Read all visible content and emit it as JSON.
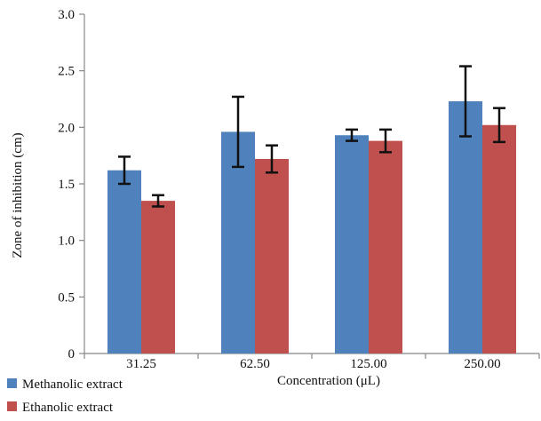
{
  "chart_data": {
    "type": "bar",
    "title": "",
    "xlabel": "Concentration (μL)",
    "ylabel": "Zone of inhibition (cm)",
    "categories": [
      "31.25",
      "62.50",
      "125.00",
      "250.00"
    ],
    "ylim": [
      0,
      3.0
    ],
    "yticks": [
      "0",
      "0.5",
      "1.0",
      "1.5",
      "2.0",
      "2.5",
      "3.0"
    ],
    "grid": false,
    "legend_position": "bottom-left",
    "series": [
      {
        "name": "Methanolic extract",
        "color": "#4f81bd",
        "values": [
          1.62,
          1.96,
          1.93,
          2.23
        ],
        "error": [
          0.12,
          0.31,
          0.05,
          0.31
        ]
      },
      {
        "name": "Ethanolic extract",
        "color": "#c0504d",
        "values": [
          1.35,
          1.72,
          1.88,
          2.02
        ],
        "error": [
          0.05,
          0.12,
          0.1,
          0.15
        ]
      }
    ]
  }
}
